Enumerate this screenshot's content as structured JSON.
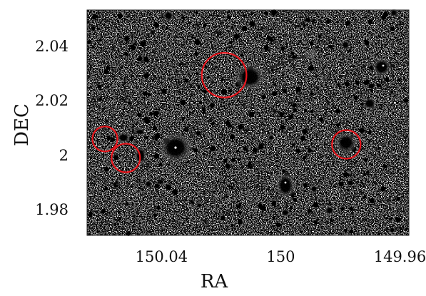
{
  "image": {
    "type": "astronomical sky field",
    "colormap": "inverted grayscale",
    "circle_color": "#e8141b"
  },
  "axes": {
    "x_label": "RA",
    "y_label": "DEC",
    "x_range": [
      150.065,
      149.957
    ],
    "y_range": [
      1.971,
      2.054
    ],
    "x_ticks": [
      "150.04",
      "150",
      "149.96"
    ],
    "y_ticks": [
      "2.04",
      "2.02",
      "2",
      "1.98"
    ]
  },
  "circled_sources": [
    {
      "ra": 150.019,
      "dec": 2.03,
      "radius_deg": 0.0075
    },
    {
      "ra": 150.059,
      "dec": 2.0065,
      "radius_deg": 0.0042
    },
    {
      "ra": 150.052,
      "dec": 1.9995,
      "radius_deg": 0.0048
    },
    {
      "ra": 149.978,
      "dec": 2.0045,
      "radius_deg": 0.0048
    }
  ]
}
